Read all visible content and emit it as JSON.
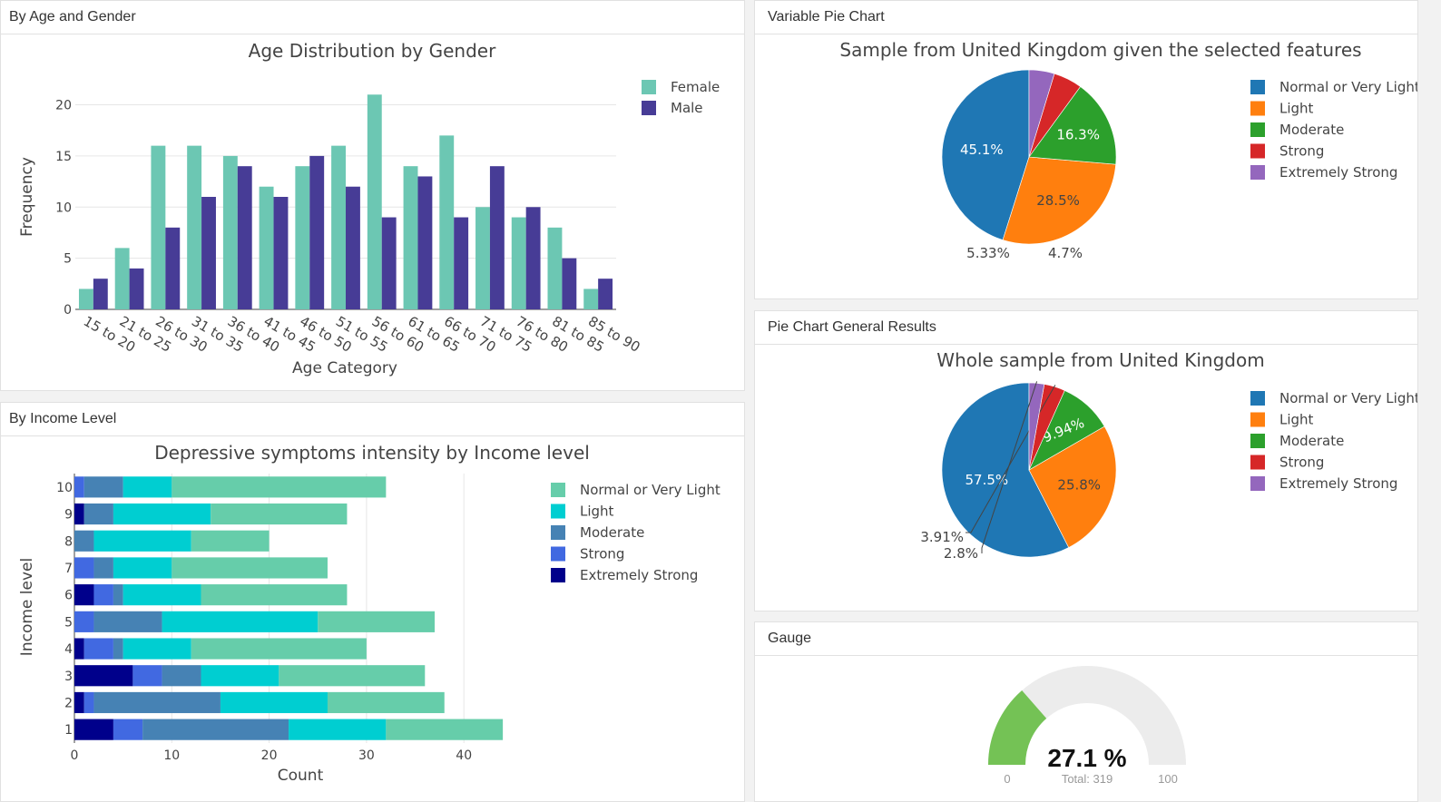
{
  "panels": {
    "age_gender": "By Age and Gender",
    "income": "By Income Level",
    "variable_pie": "Variable Pie Chart",
    "general_pie": "Pie Chart General Results",
    "gauge": "Gauge"
  },
  "colors": {
    "female": "#6cc7b3",
    "male": "#473c96",
    "normal": "#66cdaa",
    "light": "#00ced1",
    "moderate": "#4682b4",
    "strong": "#4169e1",
    "extreme": "#00008b",
    "pie_normal": "#1f77b4",
    "pie_light": "#ff7f0e",
    "pie_moderate": "#2ca02c",
    "pie_strong": "#d62728",
    "pie_extreme": "#9467bd",
    "gauge_fill": "#74c255",
    "gauge_bg": "#ececec"
  },
  "chart_data": [
    {
      "id": "age",
      "type": "bar",
      "title": "Age Distribution by Gender",
      "xlabel": "Age Category",
      "ylabel": "Frequency",
      "categories": [
        "15 to 20",
        "21 to 25",
        "26 to 30",
        "31 to 35",
        "36 to 40",
        "41 to 45",
        "46 to 50",
        "51 to 55",
        "56 to 60",
        "61 to 65",
        "66 to 70",
        "71 to 75",
        "76 to 80",
        "81 to 85",
        "85 to 90"
      ],
      "series": [
        {
          "name": "Female",
          "values": [
            2,
            6,
            16,
            16,
            15,
            12,
            14,
            16,
            21,
            14,
            17,
            10,
            9,
            8,
            2
          ]
        },
        {
          "name": "Male",
          "values": [
            3,
            4,
            8,
            11,
            14,
            11,
            15,
            12,
            9,
            13,
            9,
            14,
            10,
            5,
            3
          ]
        }
      ],
      "ylim": [
        0,
        22
      ],
      "yticks": [
        0,
        5,
        10,
        15,
        20
      ],
      "legend": "top-right",
      "grid": true
    },
    {
      "id": "income",
      "type": "bar",
      "orientation": "horizontal",
      "stacked": true,
      "title": "Depressive symptoms intensity by Income level",
      "xlabel": "Count",
      "ylabel": "Income level",
      "categories": [
        "1",
        "2",
        "3",
        "4",
        "5",
        "6",
        "7",
        "8",
        "9",
        "10"
      ],
      "series": [
        {
          "name": "Extremely Strong",
          "values": [
            4,
            1,
            6,
            1,
            0,
            2,
            0,
            0,
            1,
            0
          ]
        },
        {
          "name": "Strong",
          "values": [
            3,
            1,
            3,
            3,
            2,
            2,
            2,
            0,
            0,
            1
          ]
        },
        {
          "name": "Moderate",
          "values": [
            15,
            13,
            4,
            1,
            7,
            1,
            2,
            2,
            3,
            4
          ]
        },
        {
          "name": "Light",
          "values": [
            10,
            11,
            8,
            7,
            16,
            8,
            6,
            10,
            10,
            5
          ]
        },
        {
          "name": "Normal or Very Light",
          "values": [
            12,
            12,
            15,
            18,
            12,
            15,
            16,
            8,
            14,
            22
          ]
        }
      ],
      "legend_order": [
        "Normal or Very Light",
        "Light",
        "Moderate",
        "Strong",
        "Extremely Strong"
      ],
      "xlim": [
        0,
        45
      ],
      "xticks": [
        0,
        10,
        20,
        30,
        40
      ],
      "legend": "top-right",
      "grid": true
    },
    {
      "id": "pie1",
      "type": "pie",
      "title": "Sample from United Kingdom given the selected features",
      "labels": [
        "Normal or Very Light",
        "Light",
        "Moderate",
        "Strong",
        "Extremely Strong"
      ],
      "values": [
        45.1,
        28.5,
        16.3,
        5.33,
        4.7
      ],
      "value_labels": [
        "45.1%",
        "28.5%",
        "16.3%",
        "5.33%",
        "4.7%"
      ],
      "legend": "right"
    },
    {
      "id": "pie2",
      "type": "pie",
      "title": "Whole sample from United Kingdom",
      "labels": [
        "Normal or Very Light",
        "Light",
        "Moderate",
        "Strong",
        "Extremely Strong"
      ],
      "values": [
        57.5,
        25.8,
        9.94,
        3.91,
        2.8
      ],
      "value_labels": [
        "57.5%",
        "25.8%",
        "9.94%",
        "3.91%",
        "2.8%"
      ],
      "legend": "right"
    }
  ],
  "gauge": {
    "value_text": "27.1 %",
    "value": 27.1,
    "min": 0,
    "max": 100,
    "min_label": "0",
    "max_label": "100",
    "total_label": "Total: 319"
  }
}
